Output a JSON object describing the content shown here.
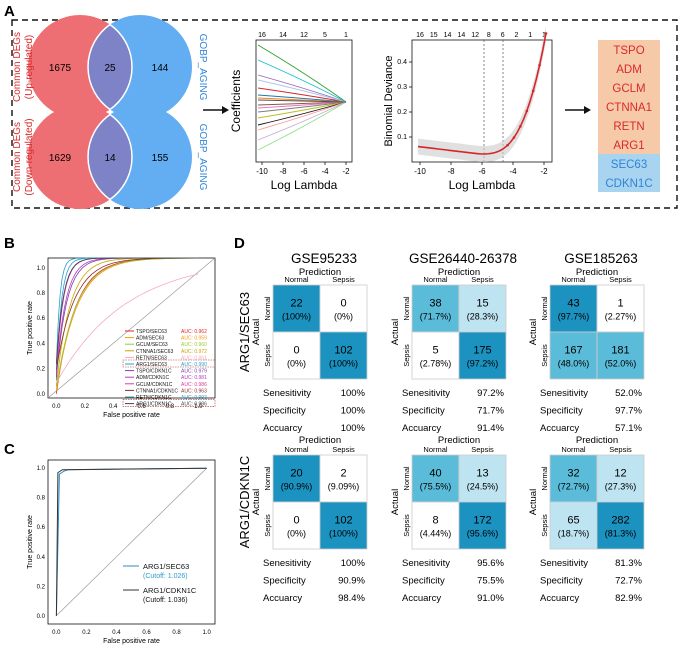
{
  "colors": {
    "venn_left": "#EE6F73",
    "venn_right": "#63AEF2",
    "venn_overlap": "#7D83C6",
    "up_label": "#D92B2B",
    "down_label": "#D92B2B",
    "aging_label": "#2F84D9",
    "gene_up_bg": "#F6C9A8",
    "gene_up_text": "#D92B2B",
    "gene_down_bg": "#A8D4EF",
    "gene_down_text": "#2F84D9",
    "cm_dark": "#1B92BF",
    "cm_mid": "#5BBCD9",
    "cm_light": "#BFE4F1",
    "cm_pale": "#E8F5FA",
    "lasso_red": "#D62728",
    "auc_text": "#D62728"
  },
  "panels": {
    "a": "A",
    "b": "B",
    "c": "C",
    "d": "D"
  },
  "venn": [
    {
      "left_label": "Common DEGs",
      "left_sub": "(Up-regulated)",
      "right_label": "GOBP_AGING",
      "left": "1675",
      "overlap": "25",
      "right": "144"
    },
    {
      "left_label": "Common DEGs",
      "left_sub": "(Down-regulated)",
      "right_label": "GOBP_AGING",
      "left": "1629",
      "overlap": "14",
      "right": "155"
    }
  ],
  "lasso_coef": {
    "ylabel": "Coefficients",
    "xlabel": "Log Lambda",
    "xticks": [
      "-10",
      "-8",
      "-6",
      "-4",
      "-2"
    ],
    "top_ticks": [
      "16",
      "14",
      "12",
      "5",
      "1"
    ]
  },
  "lasso_dev": {
    "ylabel": "Binomial Deviance",
    "xlabel": "Log Lambda",
    "xticks": [
      "-10",
      "-8",
      "-6",
      "-4",
      "-2"
    ],
    "yticks": [
      "0.1",
      "0.2",
      "0.3",
      "0.4"
    ],
    "top_ticks": [
      "16",
      "15",
      "14",
      "14",
      "12",
      "8",
      "6",
      "2",
      "1",
      "1"
    ]
  },
  "genes_up": [
    "TSPO",
    "ADM",
    "GCLM",
    "CTNNA1",
    "RETN",
    "ARG1"
  ],
  "genes_down": [
    "SEC63",
    "CDKN1C"
  ],
  "chart_data": [
    {
      "type": "line",
      "title": "ROC curves (panel B)",
      "xlabel": "False positive rate",
      "ylabel": "True positive rate",
      "xlim": [
        0,
        1
      ],
      "ylim": [
        0,
        1
      ],
      "xticks": [
        "0.0",
        "0.2",
        "0.4",
        "0.6",
        "0.8",
        "1.0"
      ],
      "yticks": [
        "0.0",
        "0.2",
        "0.4",
        "0.6",
        "0.8",
        "1.0"
      ],
      "series": [
        {
          "name": "TSPO/SEC63",
          "auc": "AUC: 0.962",
          "color": "#E8231F"
        },
        {
          "name": "ADM/SEC63",
          "auc": "AUC: 0.959",
          "color": "#F39C12"
        },
        {
          "name": "GCLM/SEC63",
          "auc": "AUC: 0.960",
          "color": "#9ACD32"
        },
        {
          "name": "CTNNA1/SEC63",
          "auc": "AUC: 0.972",
          "color": "#C8A600"
        },
        {
          "name": "RETN/SEC63",
          "auc": "AUC: 0.861",
          "color": "#F7A8C4"
        },
        {
          "name": "ARG1/SEC63",
          "auc": "AUC: 0.990",
          "color": "#1FA2D6"
        },
        {
          "name": "TSPO/CDKN1C",
          "auc": "AUC: 0.979",
          "color": "#7B3FA0"
        },
        {
          "name": "ADM/CDKN1C",
          "auc": "AUC: 0.981",
          "color": "#B03CC8"
        },
        {
          "name": "GCLM/CDKN1C",
          "auc": "AUC: 0.986",
          "color": "#D93BA0"
        },
        {
          "name": "CTNNA1/CDKN1C",
          "auc": "AUC: 0.963",
          "color": "#8B2D2D"
        },
        {
          "name": "RETN/CDKN1C",
          "auc": "AUC: 0.993",
          "color": "#2E9CCA"
        },
        {
          "name": "ARG1/CDKN1C",
          "auc": "AUC: 0.986",
          "color": "#444444"
        }
      ]
    },
    {
      "type": "line",
      "title": "ROC (panel C)",
      "xlabel": "False positive rate",
      "ylabel": "True positive rate",
      "xlim": [
        0,
        1
      ],
      "ylim": [
        0,
        1
      ],
      "xticks": [
        "0.0",
        "0.2",
        "0.4",
        "0.6",
        "0.8",
        "1.0"
      ],
      "yticks": [
        "0.0",
        "0.2",
        "0.4",
        "0.6",
        "0.8",
        "1.0"
      ],
      "series": [
        {
          "name": "ARG1/SEC63",
          "cutoff": "(Cutoff: 1.026)",
          "color": "#2E8BC0",
          "points": [
            [
              0,
              0
            ],
            [
              0.02,
              0.96
            ],
            [
              0.05,
              0.98
            ],
            [
              0.08,
              0.99
            ],
            [
              1,
              1
            ]
          ]
        },
        {
          "name": "ARG1/CDKN1C",
          "cutoff": "(Cutoff: 1.036)",
          "color": "#333333",
          "points": [
            [
              0,
              0
            ],
            [
              0.01,
              0.97
            ],
            [
              0.04,
              0.99
            ],
            [
              1,
              1
            ]
          ]
        }
      ]
    },
    {
      "type": "table",
      "title": "Confusion matrices (panel D)",
      "pred_label": "Prediction",
      "actual_label": "Actual",
      "classes": [
        "Normal",
        "Sepsis"
      ],
      "metric_labels": [
        "Senesitivity",
        "Specificity",
        "Accuarcy"
      ],
      "datasets": [
        "GSE95233",
        "GSE26440-26378",
        "GSE185263"
      ],
      "models": [
        "ARG1/SEC63",
        "ARG1/CDKN1C"
      ],
      "matrices": [
        [
          {
            "cells": [
              [
                "22",
                "(100%)"
              ],
              [
                "0",
                "(0%)"
              ],
              [
                "0",
                "(0%)"
              ],
              [
                "102",
                "(100%)"
              ]
            ],
            "metrics": [
              "100%",
              "100%",
              "100%"
            ]
          },
          {
            "cells": [
              [
                "38",
                "(71.7%)"
              ],
              [
                "15",
                "(28.3%)"
              ],
              [
                "5",
                "(2.78%)"
              ],
              [
                "175",
                "(97.2%)"
              ]
            ],
            "metrics": [
              "97.2%",
              "71.7%",
              "91.4%"
            ]
          },
          {
            "cells": [
              [
                "43",
                "(97.7%)"
              ],
              [
                "1",
                "(2.27%)"
              ],
              [
                "167",
                "(48.0%)"
              ],
              [
                "181",
                "(52.0%)"
              ]
            ],
            "metrics": [
              "52.0%",
              "97.7%",
              "57.1%"
            ]
          }
        ],
        [
          {
            "cells": [
              [
                "20",
                "(90.9%)"
              ],
              [
                "2",
                "(9.09%)"
              ],
              [
                "0",
                "(0%)"
              ],
              [
                "102",
                "(100%)"
              ]
            ],
            "metrics": [
              "100%",
              "90.9%",
              "98.4%"
            ]
          },
          {
            "cells": [
              [
                "40",
                "(75.5%)"
              ],
              [
                "13",
                "(24.5%)"
              ],
              [
                "8",
                "(4.44%)"
              ],
              [
                "172",
                "(95.6%)"
              ]
            ],
            "metrics": [
              "95.6%",
              "75.5%",
              "91.0%"
            ]
          },
          {
            "cells": [
              [
                "32",
                "(72.7%)"
              ],
              [
                "12",
                "(27.3%)"
              ],
              [
                "65",
                "(18.7%)"
              ],
              [
                "282",
                "(81.3%)"
              ]
            ],
            "metrics": [
              "81.3%",
              "72.7%",
              "82.9%"
            ]
          }
        ]
      ]
    }
  ]
}
